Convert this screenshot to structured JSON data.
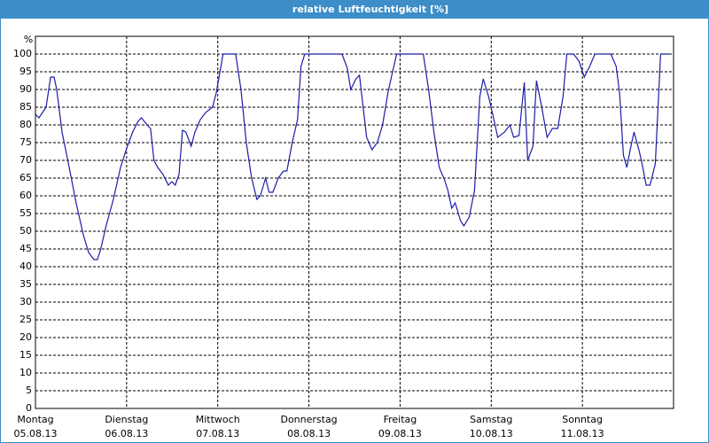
{
  "chart_data": {
    "type": "line",
    "title": "relative Luftfeuchtigkeit [%]",
    "y_label": "%",
    "color": "#1c1ca8",
    "grid": true,
    "xlim": [
      0,
      168
    ],
    "xticks": [
      {
        "value": 0,
        "label": "Montag"
      },
      {
        "value": 24,
        "label": "Dienstag"
      },
      {
        "value": 48,
        "label": "Mittwoch"
      },
      {
        "value": 72,
        "label": "Donnerstag"
      },
      {
        "value": 96,
        "label": "Freitag"
      },
      {
        "value": 120,
        "label": "Samstag"
      },
      {
        "value": 144,
        "label": "Sonntag"
      }
    ],
    "xtick_dates": [
      "05.08.13",
      "06.08.13",
      "07.08.13",
      "08.08.13",
      "09.08.13",
      "10.08.13",
      "11.08.13"
    ],
    "ylim": [
      0,
      105
    ],
    "yticks": [
      0,
      5,
      10,
      15,
      20,
      25,
      30,
      35,
      40,
      45,
      50,
      55,
      60,
      65,
      70,
      75,
      80,
      85,
      90,
      95,
      100
    ],
    "x": [
      0,
      0.9,
      2.8,
      4,
      4.9,
      5.6,
      7,
      8.9,
      10.7,
      12.6,
      14,
      15.4,
      16.3,
      17.2,
      18.6,
      20.5,
      22.4,
      24.2,
      25.6,
      27,
      27.9,
      29.4,
      30.3,
      31.2,
      32.2,
      33.6,
      35,
      35.9,
      36.8,
      37.8,
      38.7,
      39.6,
      41,
      42,
      43.4,
      44.8,
      46.6,
      47.6,
      49.4,
      52.7,
      54.1,
      55.5,
      56.9,
      58.3,
      59.2,
      60.6,
      61.5,
      62.5,
      63.9,
      65.3,
      66.2,
      67.6,
      69,
      69.9,
      70.9,
      80.7,
      82.1,
      83,
      84.4,
      85.3,
      87.2,
      88.6,
      90,
      91.4,
      92.8,
      93.7,
      95.1,
      102.1,
      103.5,
      104.9,
      106.3,
      107.7,
      108.6,
      109.6,
      110.5,
      111.9,
      112.8,
      114.2,
      115.6,
      117,
      117.9,
      119.3,
      120.7,
      121.7,
      123.5,
      124.9,
      125.9,
      127.3,
      128.7,
      129.6,
      131,
      131.9,
      133.3,
      134.7,
      136.1,
      137.5,
      138.9,
      139.9,
      141.7,
      143.1,
      144.5,
      145.9,
      147.3,
      151.5,
      152.9,
      153.8,
      154.8,
      155.7,
      156.6,
      157.6,
      159,
      159.9,
      160.8,
      161.8,
      163.2,
      164.6,
      166.9
    ],
    "values": [
      83,
      82,
      85,
      93.5,
      93.5,
      90,
      78,
      68,
      58,
      49,
      44,
      42,
      42,
      45,
      51.5,
      59,
      68,
      74,
      78,
      81,
      82,
      80,
      79,
      70,
      68,
      66,
      63,
      64,
      63,
      66,
      78.5,
      78,
      74,
      78,
      81.5,
      83.5,
      85,
      89,
      100,
      100,
      90,
      75,
      65,
      59,
      60,
      65,
      61,
      61,
      65,
      67,
      67,
      75,
      81.5,
      96.5,
      100,
      100,
      96,
      90,
      93,
      94,
      76.5,
      73,
      75,
      80,
      89,
      93.5,
      100,
      100,
      90,
      78,
      68,
      64.5,
      61.5,
      56.5,
      58,
      53,
      51.5,
      54,
      61.5,
      88,
      93,
      88,
      81.5,
      76.5,
      78,
      80,
      76.5,
      77,
      92,
      70,
      74,
      92.5,
      85,
      76.5,
      79,
      79,
      88,
      100,
      100,
      98,
      93.5,
      96.5,
      100,
      100,
      96.5,
      89,
      71.5,
      68,
      73,
      78,
      72.5,
      68,
      63,
      63,
      69,
      100,
      100
    ]
  }
}
